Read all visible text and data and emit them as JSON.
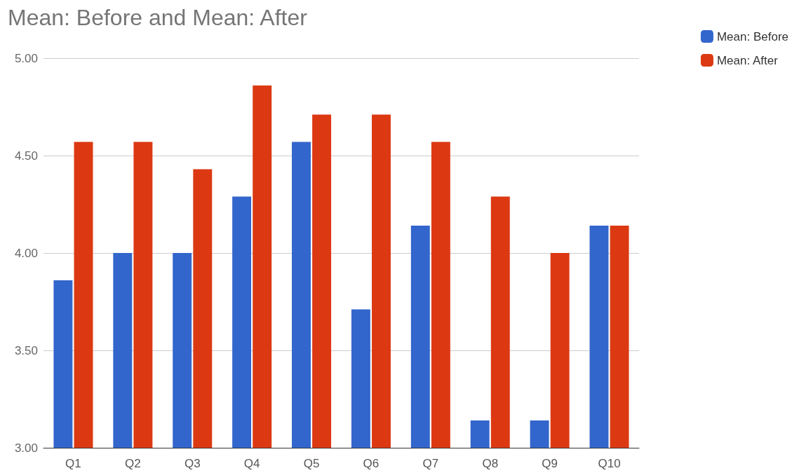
{
  "chart_data": {
    "type": "bar",
    "title": "Mean: Before and Mean: After",
    "categories": [
      "Q1",
      "Q2",
      "Q3",
      "Q4",
      "Q5",
      "Q6",
      "Q7",
      "Q8",
      "Q9",
      "Q10"
    ],
    "series": [
      {
        "name": "Mean: Before",
        "color": "#3366cc",
        "values": [
          3.86,
          4.0,
          4.0,
          4.29,
          4.57,
          3.71,
          4.14,
          3.14,
          3.14,
          4.14
        ]
      },
      {
        "name": "Mean: After",
        "color": "#dc3912",
        "values": [
          4.57,
          4.57,
          4.43,
          4.86,
          4.71,
          4.71,
          4.57,
          4.29,
          4.0,
          4.14
        ]
      }
    ],
    "ylim": [
      3,
      5
    ],
    "yticks": [
      {
        "value": 3,
        "label": "3.00"
      },
      {
        "value": 3.5,
        "label": "3.50"
      },
      {
        "value": 4,
        "label": "4.00"
      },
      {
        "value": 4.5,
        "label": "4.50"
      },
      {
        "value": 5,
        "label": "5.00"
      }
    ],
    "grid": "y",
    "legend": "top right"
  }
}
